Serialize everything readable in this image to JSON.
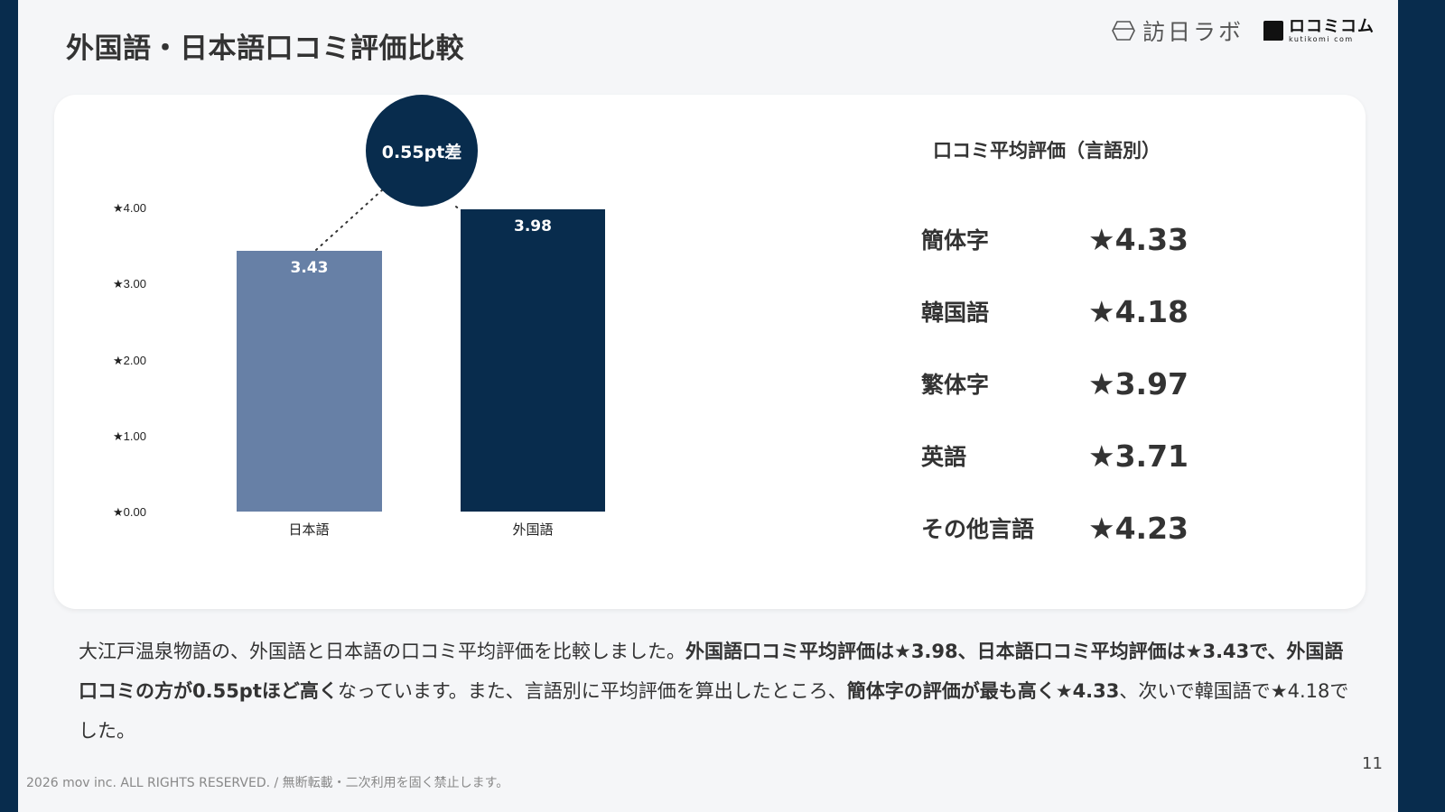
{
  "header": {
    "title": "外国語・日本語口コミ評価比較",
    "logo_primary": "訪日ラボ",
    "logo_secondary_jp": "ロコミコム",
    "logo_secondary_en": "kutikomi com"
  },
  "colors": {
    "navy": "#082c4d",
    "japanese_bar": "#6780a6",
    "foreign_bar": "#082c4d",
    "background": "#f5f6f8"
  },
  "chart_data": {
    "type": "bar",
    "title": "",
    "categories": [
      "日本語",
      "外国語"
    ],
    "values": [
      3.43,
      3.98
    ],
    "value_labels": [
      "3.43",
      "3.98"
    ],
    "xlabel": "",
    "ylabel": "",
    "ylim": [
      0,
      4
    ],
    "yticks": [
      "★0.00",
      "★1.00",
      "★2.00",
      "★3.00",
      "★4.00"
    ],
    "grid": false,
    "annotation": "0.55pt差",
    "bar_colors": [
      "#6780a6",
      "#082c4d"
    ]
  },
  "ranking": {
    "title": "口コミ平均評価（言語別）",
    "rows": [
      {
        "language": "簡体字",
        "rating": "★4.33"
      },
      {
        "language": "韓国語",
        "rating": "★4.18"
      },
      {
        "language": "繁体字",
        "rating": "★3.97"
      },
      {
        "language": "英語",
        "rating": "★3.71"
      },
      {
        "language": "その他言語",
        "rating": "★4.23"
      }
    ]
  },
  "description": {
    "p1": "大江戸温泉物語の、外国語と日本語の口コミ平均評価を比較しました。",
    "b1": "外国語口コミ平均評価は★3.98、日本語口コミ平均評価は★3.43で、外国語口コミの方が0.55ptほど高く",
    "p2": "なっています。また、言語別に平均評価を算出したところ、",
    "b2": "簡体字の評価が最も高く★4.33",
    "p3": "、次いで韓国語で★4.18でした。"
  },
  "footer": {
    "copyright": "2026 mov inc. ALL RIGHTS RESERVED. / 無断転載・二次利用を固く禁止します。",
    "page_number": "11"
  }
}
